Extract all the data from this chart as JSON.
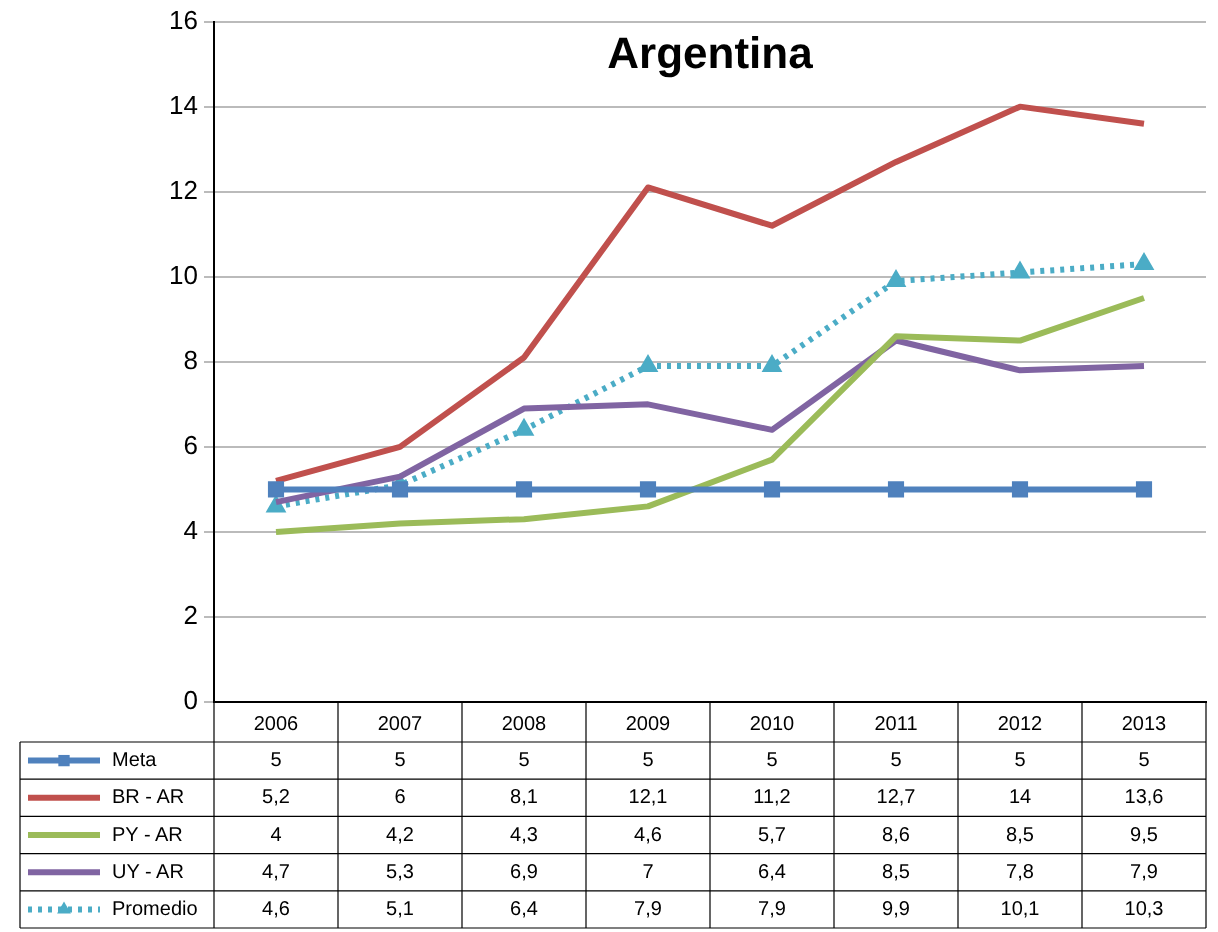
{
  "chart_data": {
    "type": "line",
    "title": "Argentina",
    "categories": [
      "2006",
      "2007",
      "2008",
      "2009",
      "2010",
      "2011",
      "2012",
      "2013"
    ],
    "ylim": [
      0,
      16
    ],
    "yticks": [
      0,
      2,
      4,
      6,
      8,
      10,
      12,
      14,
      16
    ],
    "grid": "y",
    "legend": "bottom",
    "series": [
      {
        "name": "Meta",
        "color": "#4f81bd",
        "marker": "square",
        "line_style": "solid",
        "values": [
          5,
          5,
          5,
          5,
          5,
          5,
          5,
          5
        ],
        "value_labels": [
          "5",
          "5",
          "5",
          "5",
          "5",
          "5",
          "5",
          "5"
        ]
      },
      {
        "name": "BR - AR",
        "color": "#c0504d",
        "marker": "none",
        "line_style": "solid",
        "values": [
          5.2,
          6,
          8.1,
          12.1,
          11.2,
          12.7,
          14,
          13.6
        ],
        "value_labels": [
          "5,2",
          "6",
          "8,1",
          "12,1",
          "11,2",
          "12,7",
          "14",
          "13,6"
        ]
      },
      {
        "name": "PY - AR",
        "color": "#9bbb59",
        "marker": "none",
        "line_style": "solid",
        "values": [
          4,
          4.2,
          4.3,
          4.6,
          5.7,
          8.6,
          8.5,
          9.5
        ],
        "value_labels": [
          "4",
          "4,2",
          "4,3",
          "4,6",
          "5,7",
          "8,6",
          "8,5",
          "9,5"
        ]
      },
      {
        "name": "UY - AR",
        "color": "#8064a2",
        "marker": "none",
        "line_style": "solid",
        "values": [
          4.7,
          5.3,
          6.9,
          7,
          6.4,
          8.5,
          7.8,
          7.9
        ],
        "value_labels": [
          "4,7",
          "5,3",
          "6,9",
          "7",
          "6,4",
          "8,5",
          "7,8",
          "7,9"
        ]
      },
      {
        "name": "Promedio",
        "color": "#4bacc6",
        "marker": "triangle",
        "line_style": "dotted",
        "values": [
          4.6,
          5.1,
          6.4,
          7.9,
          7.9,
          9.9,
          10.1,
          10.3
        ],
        "value_labels": [
          "4,6",
          "5,1",
          "6,4",
          "7,9",
          "7,9",
          "9,9",
          "10,1",
          "10,3"
        ]
      }
    ]
  }
}
